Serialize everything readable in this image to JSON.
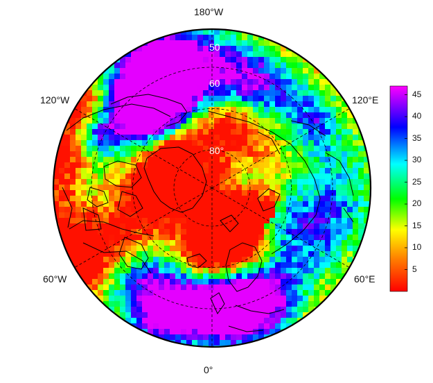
{
  "map": {
    "projection": "north-polar-stereographic",
    "lon_labels": {
      "top": "180°W",
      "bottom": "0°",
      "upper_left": "120°W",
      "upper_right": "120°E",
      "lower_left": "60°W",
      "lower_right": "60°E"
    },
    "lat_labels": [
      "50",
      "60",
      "80°"
    ],
    "colors": {
      "frame": "#000000",
      "coast": "#000000",
      "graticule": "#000000",
      "lat_label_color": "#ffffff"
    }
  },
  "colorbar": {
    "min": 0,
    "max": 47,
    "ticks": [
      "45",
      "40",
      "35",
      "30",
      "25",
      "20",
      "15",
      "10",
      "5"
    ],
    "tick_values": [
      45,
      40,
      35,
      30,
      25,
      20,
      15,
      10,
      5
    ],
    "colormap": [
      "#ff0000",
      "#ff8000",
      "#ffff00",
      "#00ff00",
      "#00ffff",
      "#0000ff",
      "#ff00ff"
    ]
  }
}
